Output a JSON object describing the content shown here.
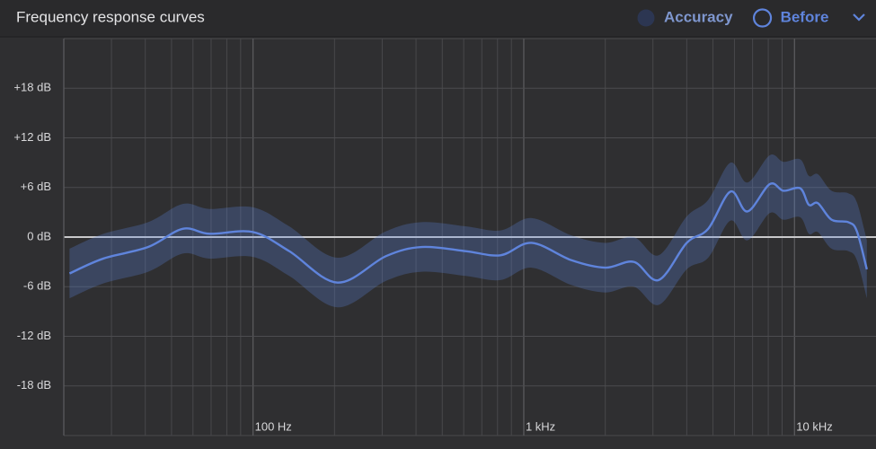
{
  "chart_data": {
    "type": "line",
    "title": "Frequency response curves",
    "x_log": true,
    "xlim": [
      20,
      20000
    ],
    "xticks": [
      {
        "value": 100,
        "label": "100 Hz"
      },
      {
        "value": 1000,
        "label": "1 kHz"
      },
      {
        "value": 10000,
        "label": "10 kHz"
      }
    ],
    "x_minor_grid": [
      20,
      30,
      40,
      50,
      60,
      70,
      80,
      90,
      200,
      300,
      400,
      500,
      600,
      700,
      800,
      900,
      2000,
      3000,
      4000,
      5000,
      6000,
      7000,
      8000,
      9000
    ],
    "ylim": [
      -24,
      24
    ],
    "yticks": [
      {
        "value": 18,
        "label": "+18 dB"
      },
      {
        "value": 12,
        "label": "+12 dB"
      },
      {
        "value": 6,
        "label": "+6 dB"
      },
      {
        "value": 0,
        "label": "0 dB"
      },
      {
        "value": -6,
        "label": "-6 dB"
      },
      {
        "value": -12,
        "label": "-12 dB"
      },
      {
        "value": -18,
        "label": "-18 dB"
      }
    ],
    "y_minor_grid": [
      -24,
      24
    ],
    "grid": true,
    "legend_position": "top-right",
    "inactive_series": [
      {
        "name": "Accuracy",
        "color": "#2c3652"
      }
    ],
    "x": [
      21,
      28,
      41,
      55,
      69,
      100,
      136,
      205,
      310,
      420,
      610,
      820,
      1070,
      1500,
      2000,
      2550,
      3150,
      4000,
      4800,
      5800,
      6700,
      8100,
      9100,
      10500,
      11300,
      12200,
      13700,
      15800,
      17000,
      18500
    ],
    "series": [
      {
        "name": "Before",
        "color": "#5f84dc",
        "values": [
          -4.4,
          -2.6,
          -1.2,
          1.0,
          0.4,
          0.6,
          -1.7,
          -5.5,
          -2.3,
          -1.2,
          -1.7,
          -2.2,
          -0.7,
          -2.8,
          -3.7,
          -3.0,
          -5.2,
          -0.7,
          1.0,
          5.5,
          3.1,
          6.4,
          5.6,
          5.9,
          3.9,
          4.1,
          2.1,
          1.8,
          0.7,
          -3.9
        ],
        "band_upper": [
          -1.4,
          0.4,
          1.8,
          4.0,
          3.4,
          3.6,
          1.3,
          -2.5,
          0.7,
          1.8,
          1.3,
          0.8,
          2.3,
          0.2,
          -0.7,
          0.0,
          -2.2,
          2.5,
          4.5,
          9.0,
          6.6,
          9.9,
          9.1,
          9.4,
          7.4,
          7.6,
          5.6,
          5.3,
          4.2,
          -0.4
        ],
        "band_lower": [
          -7.4,
          -5.6,
          -4.2,
          -2.0,
          -2.6,
          -2.4,
          -4.7,
          -8.5,
          -5.3,
          -4.2,
          -4.7,
          -5.2,
          -3.7,
          -5.8,
          -6.7,
          -6.0,
          -8.2,
          -3.9,
          -2.5,
          2.0,
          -0.4,
          2.9,
          2.1,
          2.4,
          0.4,
          0.6,
          -1.4,
          -1.7,
          -2.8,
          -7.4
        ]
      }
    ]
  }
}
